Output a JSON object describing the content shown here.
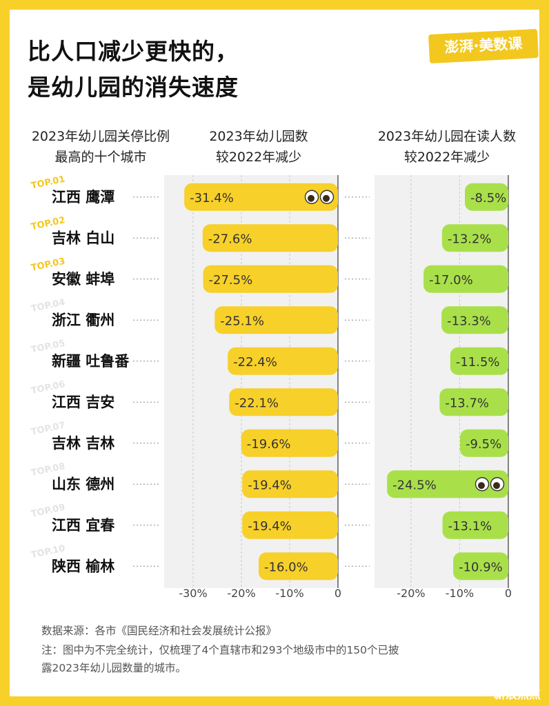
{
  "header": {
    "title_line1": "比人口减少更快的，",
    "title_line2": "是幼儿园的消失速度",
    "brand_label": "澎湃·美数课"
  },
  "columns": {
    "city_header_line1": "2023年幼儿园关停比例",
    "city_header_line2": "最高的十个城市",
    "kg_header_line1": "2023年幼儿园数",
    "kg_header_line2": "较2022年减少",
    "enroll_header_line1": "2023年幼儿园在读人数",
    "enroll_header_line2": "较2022年减少"
  },
  "chart_data": {
    "type": "bar",
    "orientation": "horizontal",
    "categories": [
      "江西 鹰潭",
      "吉林 白山",
      "安徽 蚌埠",
      "浙江 衢州",
      "新疆 吐鲁番",
      "江西 吉安",
      "吉林 吉林",
      "山东 德州",
      "江西 宜春",
      "陕西 榆林"
    ],
    "rank_labels": [
      "TOP.01",
      "TOP.02",
      "TOP.03",
      "TOP.04",
      "TOP.05",
      "TOP.06",
      "TOP.07",
      "TOP.08",
      "TOP.09",
      "TOP.10"
    ],
    "panels": [
      {
        "values": [
          -31.4,
          -27.6,
          -27.5,
          -25.1,
          -22.4,
          -22.1,
          -19.6,
          -19.4,
          -19.4,
          -16.0
        ],
        "labels": [
          "-31.4%",
          "-27.6%",
          "-27.5%",
          "-25.1%",
          "-22.4%",
          "-22.1%",
          "-19.6%",
          "-19.4%",
          "-19.4%",
          "-16.0%"
        ],
        "xlim": [
          -36,
          0
        ],
        "ticks": [
          -30,
          -20,
          -10,
          0
        ],
        "tick_labels": [
          "-30%",
          "-20%",
          "-10%",
          "0"
        ],
        "color": "#f7d02a",
        "highlight_index": 0
      },
      {
        "values": [
          -8.5,
          -13.2,
          -17.0,
          -13.3,
          -11.5,
          -13.7,
          -9.5,
          -24.5,
          -13.1,
          -10.9
        ],
        "labels": [
          "-8.5%",
          "-13.2%",
          "-17.0%",
          "-13.3%",
          "-11.5%",
          "-13.7%",
          "-9.5%",
          "-24.5%",
          "-13.1%",
          "-10.9%"
        ],
        "xlim": [
          -27.5,
          0
        ],
        "ticks": [
          -20,
          -10,
          0
        ],
        "tick_labels": [
          "-20%",
          "-10%",
          "0"
        ],
        "color": "#a9e04a",
        "highlight_index": 7
      }
    ],
    "grid": true
  },
  "footer": {
    "source": "数据来源：各市《国民经济和社会发展统计公报》",
    "note_line1": "注：图中为不完全统计，仅梳理了4个直辖市和293个地级市中的150个已披",
    "note_line2": "露2023年幼儿园数量的城市。",
    "watermark": "新浪热点"
  }
}
